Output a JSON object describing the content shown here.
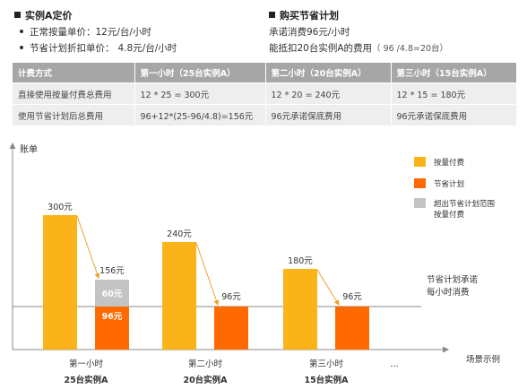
{
  "left_section": {
    "title": "实例A定价",
    "lines": [
      {
        "label": "正常按量单价：",
        "value": "12元/台/小时"
      },
      {
        "label": "节省计划折扣单价：",
        "value": "4.8元/台/小时"
      }
    ]
  },
  "right_section": {
    "title": "购买节省计划",
    "line1": "承诺消费96元/小时",
    "line2": "能抵扣20台实例A的费用",
    "line2_note": "（ 96 /4.8=20台）"
  },
  "table": {
    "headers": [
      "计费方式",
      "第一小时（25台实例A）",
      "第二小时（20台实例A）",
      "第三小时（15台实例A）"
    ],
    "rows": [
      [
        "直接使用按量付费总费用",
        "12 * 25 = 300元",
        "12 * 20 = 240元",
        "12 * 15 = 180元"
      ],
      [
        "使用节省计划后总费用",
        "96+12*(25-96/4.8)=156元",
        "96元承诺保底费用",
        "96元承诺保底费用"
      ]
    ]
  },
  "chart_data": {
    "type": "bar",
    "ylabel": "账单",
    "xlabel": "场景示例",
    "categories": [
      {
        "line1": "第一小时",
        "line2": "25台实例A"
      },
      {
        "line1": "第二小时",
        "line2": "20台实例A"
      },
      {
        "line1": "第三小时",
        "line2": "15台实例A"
      }
    ],
    "ellipsis": "...",
    "pay_as_you_go": {
      "values": [
        300,
        240,
        180
      ],
      "labels": [
        "300元",
        "240元",
        "180元"
      ]
    },
    "savings_plan": {
      "values": [
        96,
        96,
        96
      ],
      "labels": [
        "96元",
        "96元",
        "96元"
      ]
    },
    "overflow": {
      "values": [
        60,
        0,
        0
      ],
      "label": "60元",
      "total_label": "156元"
    },
    "commitment_line": {
      "value": 96,
      "label_line1": "节省计划承诺",
      "label_line2": "每小时消费"
    },
    "legend": [
      {
        "key": "pay",
        "lines": [
          "按量付费"
        ]
      },
      {
        "key": "plan",
        "lines": [
          "节省计划"
        ]
      },
      {
        "key": "over",
        "lines": [
          "超出节省计划范围",
          "按量付费"
        ]
      }
    ],
    "colors": {
      "pay": "#fbb31a",
      "plan": "#ff6a00",
      "over": "#c4c4c4",
      "axis": "#888888",
      "commit": "#888888",
      "arrow": "#f0a030"
    },
    "ylim": [
      0,
      400
    ]
  }
}
